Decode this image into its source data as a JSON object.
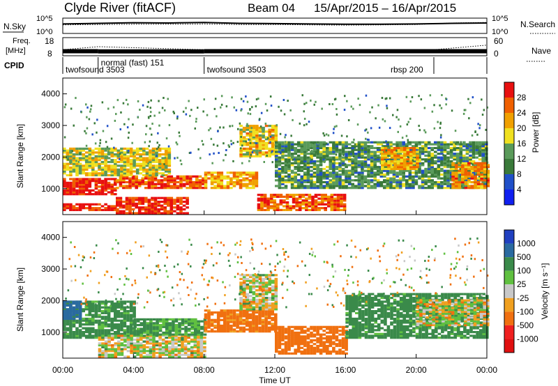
{
  "header": {
    "station": "Clyde River (fitACF)",
    "beam": "Beam 04",
    "dates": "15/Apr/2015 – 16/Apr/2015"
  },
  "noise_panel": {
    "left_label": "N.Sky",
    "left_ticks": [
      "10^5",
      "10^0"
    ],
    "right_ticks": [
      "10^5",
      "10^0"
    ],
    "right_label": "N.Search"
  },
  "freq_panel": {
    "left_label_1": "Freq.",
    "left_label_2": "[MHz]",
    "left_ticks": [
      "18",
      "8"
    ],
    "right_ticks": [
      "60",
      "0"
    ],
    "right_label": "Nave"
  },
  "cpid_panel": {
    "label": "CPID",
    "segments": [
      {
        "name": "twofsound 3503",
        "start": "00:00",
        "end": "02:00"
      },
      {
        "name": "normal (fast) 151",
        "start": "02:00",
        "end": "08:00"
      },
      {
        "name": "twofsound 3503",
        "start": "08:00",
        "end": "21:00"
      },
      {
        "name": "rbsp 200",
        "start": "21:00",
        "end": "24:00"
      }
    ]
  },
  "axes": {
    "ylabel": "Slant Range [km]",
    "y_ticks": [
      "1000",
      "2000",
      "3000",
      "4000"
    ],
    "y_tick_values": [
      1000,
      2000,
      3000,
      4000
    ],
    "xlabel": "Time UT",
    "x_ticks": [
      "00:00",
      "04:00",
      "08:00",
      "12:00",
      "16:00",
      "20:00",
      "00:00"
    ],
    "x_tick_hours": [
      0,
      4,
      8,
      12,
      16,
      20,
      24
    ]
  },
  "colorbars": {
    "power": {
      "label": "Power [dB]",
      "ticks": [
        "4",
        "8",
        "12",
        "16",
        "20",
        "24",
        "28"
      ],
      "colors": [
        "#1020f0",
        "#2050c8",
        "#3a7a3a",
        "#5a9a5a",
        "#f0e020",
        "#f0a000",
        "#f06000",
        "#e81010"
      ]
    },
    "velocity": {
      "label": "Velocity [m s⁻¹]",
      "ticks": [
        "1000",
        "500",
        "100",
        "25",
        "-25",
        "-100",
        "-500",
        "-1000"
      ],
      "colors": [
        "#2040c0",
        "#2a6aa0",
        "#3a8a4a",
        "#60c040",
        "#c8c8c8",
        "#f0a020",
        "#f07010",
        "#f02020",
        "#e01010"
      ]
    }
  },
  "chart_data": [
    {
      "type": "line",
      "panel": "noise",
      "series": [
        {
          "name": "N.Sky",
          "x_hours": [
            0,
            2,
            4,
            6,
            8,
            10,
            12,
            14,
            16,
            18,
            20,
            22,
            24
          ],
          "y_log10": [
            3.1,
            3.3,
            3.5,
            3.4,
            3.6,
            3.3,
            3.2,
            3.1,
            3.0,
            3.0,
            3.1,
            3.3,
            3.4
          ]
        },
        {
          "name": "N.Search",
          "x_hours": [
            0,
            2,
            4,
            6,
            8,
            10,
            12,
            14,
            16,
            18,
            20,
            22,
            24
          ],
          "y_log10": [
            2.8,
            2.9,
            3.0,
            3.0,
            3.1,
            2.9,
            2.9,
            2.8,
            2.7,
            2.8,
            2.9,
            3.4,
            3.6
          ]
        }
      ],
      "ylim_log10": [
        0,
        5
      ]
    },
    {
      "type": "line",
      "panel": "frequency",
      "series": [
        {
          "name": "Freq.",
          "x_hours": [
            0,
            2,
            8,
            21,
            24
          ],
          "y_mhz": [
            10.5,
            10.4,
            10.5,
            10.5,
            10.4
          ]
        },
        {
          "name": "Nave",
          "x_hours": [
            0,
            2,
            8,
            21,
            24
          ],
          "y": [
            20,
            30,
            20,
            20,
            35
          ]
        }
      ],
      "ylim_mhz": [
        8,
        18
      ],
      "ylim_nave": [
        0,
        60
      ]
    },
    {
      "type": "heatmap",
      "panel": "power",
      "title": "Power [dB]",
      "xlabel": "Time UT",
      "ylabel": "Slant Range [km]",
      "xlim_hours": [
        0,
        24
      ],
      "ylim_km": [
        180,
        4500
      ],
      "clim_db": [
        0,
        32
      ],
      "features": [
        {
          "t0": 0,
          "t1": 3,
          "r0": 800,
          "r1": 1300,
          "level": 30
        },
        {
          "t0": 0,
          "t1": 3,
          "r0": 300,
          "r1": 500,
          "level": 30
        },
        {
          "t0": 3,
          "t1": 7,
          "r0": 200,
          "r1": 700,
          "level": 29
        },
        {
          "t0": 3,
          "t1": 8,
          "r0": 1000,
          "r1": 1400,
          "level": 27
        },
        {
          "t0": 8,
          "t1": 11,
          "r0": 1000,
          "r1": 1500,
          "level": 22
        },
        {
          "t0": 11,
          "t1": 16,
          "r0": 300,
          "r1": 800,
          "level": 26
        },
        {
          "t0": 0,
          "t1": 6,
          "r0": 1400,
          "r1": 2300,
          "level": 18
        },
        {
          "t0": 10,
          "t1": 12,
          "r0": 2000,
          "r1": 3000,
          "level": 20
        },
        {
          "t0": 12,
          "t1": 24,
          "r0": 1000,
          "r1": 2500,
          "level": 12
        },
        {
          "t0": 18,
          "t1": 20,
          "r0": 1600,
          "r1": 2300,
          "level": 22
        },
        {
          "t0": 22,
          "t1": 24,
          "r0": 1000,
          "r1": 1800,
          "level": 24
        }
      ]
    },
    {
      "type": "heatmap",
      "panel": "velocity",
      "title": "Velocity [m s⁻¹]",
      "xlabel": "Time UT",
      "ylabel": "Slant Range [km]",
      "xlim_hours": [
        0,
        24
      ],
      "ylim_km": [
        180,
        4500
      ],
      "clim_ms": [
        -1000,
        1000
      ],
      "features": [
        {
          "t0": 0,
          "t1": 4,
          "r0": 800,
          "r1": 2000,
          "level": 200
        },
        {
          "t0": 0,
          "t1": 1,
          "r0": 1400,
          "r1": 2000,
          "level": 800
        },
        {
          "t0": 2,
          "t1": 8,
          "r0": 200,
          "r1": 900,
          "level": 0
        },
        {
          "t0": 4,
          "t1": 8,
          "r0": 900,
          "r1": 1400,
          "level": 150
        },
        {
          "t0": 8,
          "t1": 12,
          "r0": 1000,
          "r1": 1700,
          "level": -200
        },
        {
          "t0": 10,
          "t1": 12,
          "r0": 1700,
          "r1": 2800,
          "level": 0
        },
        {
          "t0": 12,
          "t1": 16,
          "r0": 300,
          "r1": 1200,
          "level": -300
        },
        {
          "t0": 16,
          "t1": 24,
          "r0": 800,
          "r1": 2200,
          "level": 200
        },
        {
          "t0": 20,
          "t1": 24,
          "r0": 1200,
          "r1": 2000,
          "level": 0
        }
      ]
    }
  ]
}
